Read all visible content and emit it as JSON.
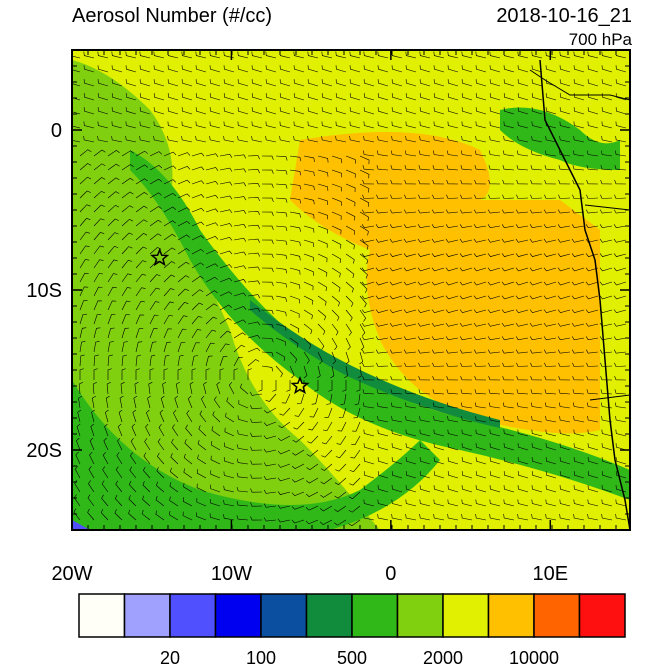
{
  "map": {
    "title": "Aerosol Number (#/cc)",
    "timestamp": "2018-10-16_21",
    "level": "700 hPa",
    "lon_range": [
      -20,
      15
    ],
    "lat_range": [
      -25,
      5
    ],
    "lon_ticks": [
      {
        "value": -20,
        "label": "20W"
      },
      {
        "value": -10,
        "label": "10W"
      },
      {
        "value": 0,
        "label": "0"
      },
      {
        "value": 10,
        "label": "10E"
      }
    ],
    "lat_ticks": [
      {
        "value": 0,
        "label": "0"
      },
      {
        "value": -10,
        "label": "10S"
      },
      {
        "value": -20,
        "label": "20S"
      }
    ],
    "markers": [
      {
        "lon": -14.5,
        "lat": -8
      },
      {
        "lon": -5.7,
        "lat": -16
      }
    ]
  },
  "colorbar": {
    "colors": [
      "#fffff8",
      "#a0a0ff",
      "#5050ff",
      "#0000f0",
      "#0a4fa0",
      "#108c3c",
      "#30b818",
      "#80d010",
      "#e0f000",
      "#ffc000",
      "#ff6400",
      "#ff1010"
    ],
    "labels": [
      "20",
      "100",
      "500",
      "2000",
      "10000"
    ]
  }
}
